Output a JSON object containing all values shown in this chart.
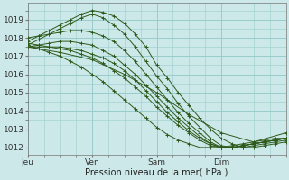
{
  "xlabel": "Pression niveau de la mer( hPa )",
  "bg_color": "#cce8e8",
  "grid_color": "#99cccc",
  "line_color": "#2d5a1b",
  "ylim": [
    1011.6,
    1019.9
  ],
  "xlim": [
    0,
    96
  ],
  "xtick_positions": [
    0,
    24,
    48,
    72
  ],
  "xtick_labels": [
    "Jeu",
    "Ven",
    "Sam",
    "Dim"
  ],
  "ytick_positions": [
    1012,
    1013,
    1014,
    1015,
    1016,
    1017,
    1018,
    1019
  ],
  "ytick_labels": [
    "1012",
    "1013",
    "1014",
    "1015",
    "1016",
    "1017",
    "1018",
    "1019"
  ],
  "series": [
    {
      "x": [
        0,
        4,
        8,
        12,
        16,
        20,
        24,
        28,
        32,
        36,
        40,
        44,
        48,
        52,
        56,
        60,
        64,
        68,
        72,
        76,
        80,
        84,
        88,
        92,
        96
      ],
      "y": [
        1017.8,
        1018.1,
        1018.4,
        1018.7,
        1019.0,
        1019.3,
        1019.5,
        1019.4,
        1019.2,
        1018.8,
        1018.2,
        1017.5,
        1016.5,
        1015.8,
        1015.0,
        1014.3,
        1013.6,
        1013.0,
        1012.5,
        1012.2,
        1012.0,
        1012.0,
        1012.1,
        1012.2,
        1012.3
      ]
    },
    {
      "x": [
        0,
        4,
        8,
        12,
        16,
        20,
        24,
        28,
        32,
        36,
        40,
        44,
        48,
        52,
        56,
        60,
        64,
        68,
        72,
        76,
        80,
        84,
        88,
        92,
        96
      ],
      "y": [
        1017.6,
        1017.9,
        1018.2,
        1018.5,
        1018.8,
        1019.1,
        1019.3,
        1019.1,
        1018.7,
        1018.2,
        1017.5,
        1016.7,
        1015.9,
        1015.2,
        1014.4,
        1013.7,
        1013.1,
        1012.5,
        1012.1,
        1012.0,
        1012.0,
        1012.1,
        1012.2,
        1012.3,
        1012.4
      ]
    },
    {
      "x": [
        0,
        4,
        8,
        12,
        16,
        20,
        24,
        28,
        32,
        36,
        40,
        44,
        48,
        52,
        56,
        60,
        64,
        68,
        72,
        76,
        80,
        84,
        88,
        92,
        96
      ],
      "y": [
        1018.0,
        1018.1,
        1018.2,
        1018.3,
        1018.4,
        1018.4,
        1018.3,
        1018.1,
        1017.8,
        1017.3,
        1016.7,
        1016.0,
        1015.3,
        1014.6,
        1013.9,
        1013.3,
        1012.8,
        1012.3,
        1012.0,
        1012.0,
        1012.1,
        1012.2,
        1012.3,
        1012.4,
        1012.5
      ]
    },
    {
      "x": [
        0,
        4,
        8,
        12,
        16,
        20,
        24,
        28,
        32,
        36,
        40,
        44,
        48,
        52,
        56,
        60,
        64,
        68,
        72,
        76,
        80,
        84,
        88,
        92,
        96
      ],
      "y": [
        1017.5,
        1017.6,
        1017.7,
        1017.8,
        1017.8,
        1017.7,
        1017.6,
        1017.3,
        1017.0,
        1016.5,
        1016.0,
        1015.4,
        1014.8,
        1014.2,
        1013.6,
        1013.1,
        1012.6,
        1012.2,
        1012.0,
        1012.0,
        1012.1,
        1012.2,
        1012.3,
        1012.4,
        1012.5
      ]
    },
    {
      "x": [
        0,
        4,
        8,
        12,
        16,
        20,
        24,
        28,
        32,
        36,
        40,
        44,
        48,
        52,
        56,
        60,
        64,
        68,
        72,
        76,
        80,
        84,
        88,
        92,
        96
      ],
      "y": [
        1017.5,
        1017.5,
        1017.5,
        1017.5,
        1017.4,
        1017.3,
        1017.1,
        1016.9,
        1016.6,
        1016.2,
        1015.7,
        1015.1,
        1014.5,
        1013.9,
        1013.4,
        1012.9,
        1012.5,
        1012.2,
        1012.0,
        1012.0,
        1012.1,
        1012.2,
        1012.3,
        1012.4,
        1012.5
      ]
    },
    {
      "x": [
        0,
        4,
        8,
        12,
        16,
        20,
        24,
        28,
        32,
        36,
        40,
        44,
        48,
        52,
        56,
        60,
        64,
        68,
        72,
        76,
        80,
        84,
        88,
        92,
        96
      ],
      "y": [
        1017.7,
        1017.6,
        1017.5,
        1017.4,
        1017.3,
        1017.1,
        1016.9,
        1016.6,
        1016.2,
        1015.8,
        1015.3,
        1014.8,
        1014.2,
        1013.7,
        1013.2,
        1012.8,
        1012.4,
        1012.1,
        1012.0,
        1012.0,
        1012.1,
        1012.2,
        1012.3,
        1012.4,
        1012.5
      ]
    },
    {
      "x": [
        0,
        4,
        8,
        12,
        16,
        20,
        24,
        28,
        32,
        36,
        40,
        44,
        48,
        52,
        56,
        60,
        64,
        68,
        72,
        76,
        80,
        84,
        88,
        92,
        96
      ],
      "y": [
        1017.6,
        1017.4,
        1017.2,
        1017.0,
        1016.7,
        1016.4,
        1016.0,
        1015.6,
        1015.1,
        1014.6,
        1014.1,
        1013.6,
        1013.1,
        1012.7,
        1012.4,
        1012.2,
        1012.0,
        1012.0,
        1012.0,
        1012.1,
        1012.2,
        1012.3,
        1012.4,
        1012.5,
        1012.5
      ]
    },
    {
      "x": [
        0,
        12,
        24,
        36,
        48,
        60,
        72,
        84,
        96
      ],
      "y": [
        1017.5,
        1017.2,
        1016.8,
        1016.0,
        1015.0,
        1013.8,
        1012.8,
        1012.3,
        1012.8
      ]
    }
  ],
  "marker": "+",
  "markersize": 2.5,
  "linewidth": 0.7,
  "fontsize_ticks": 6.5,
  "fontsize_xlabel": 7.0
}
